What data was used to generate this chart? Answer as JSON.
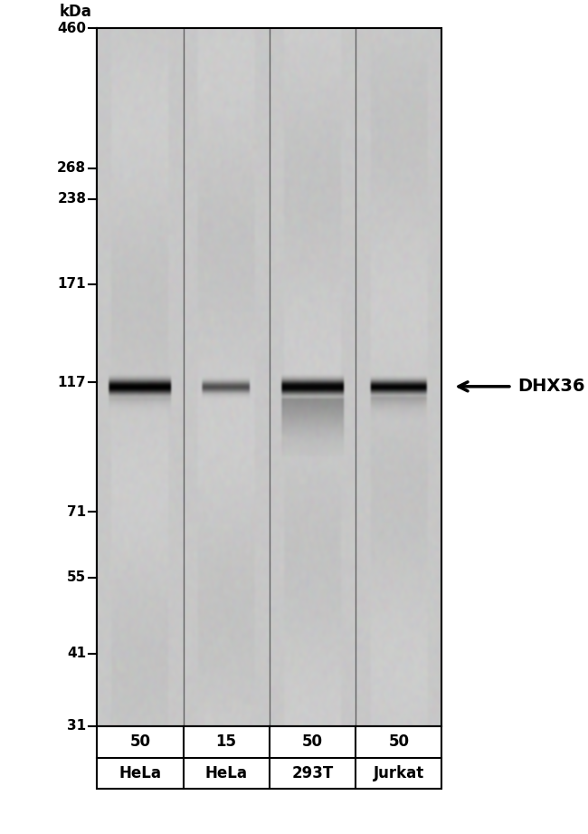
{
  "background_color": "#c8c8c8",
  "gel_bg_color": "#c0c0c0",
  "kda_labels": [
    "460",
    "268",
    "238",
    "171",
    "117",
    "71",
    "55",
    "41",
    "31"
  ],
  "kda_values": [
    460,
    268,
    238,
    171,
    117,
    71,
    55,
    41,
    31
  ],
  "kda_unit": "kDa",
  "band_kda": 115,
  "lane_loads": [
    "50",
    "15",
    "50",
    "50"
  ],
  "lane_labels": [
    "HeLa",
    "HeLa",
    "293T",
    "Jurkat"
  ],
  "annotation_label": "DHX36",
  "figure_width": 6.5,
  "figure_height": 9.21,
  "dpi": 100
}
